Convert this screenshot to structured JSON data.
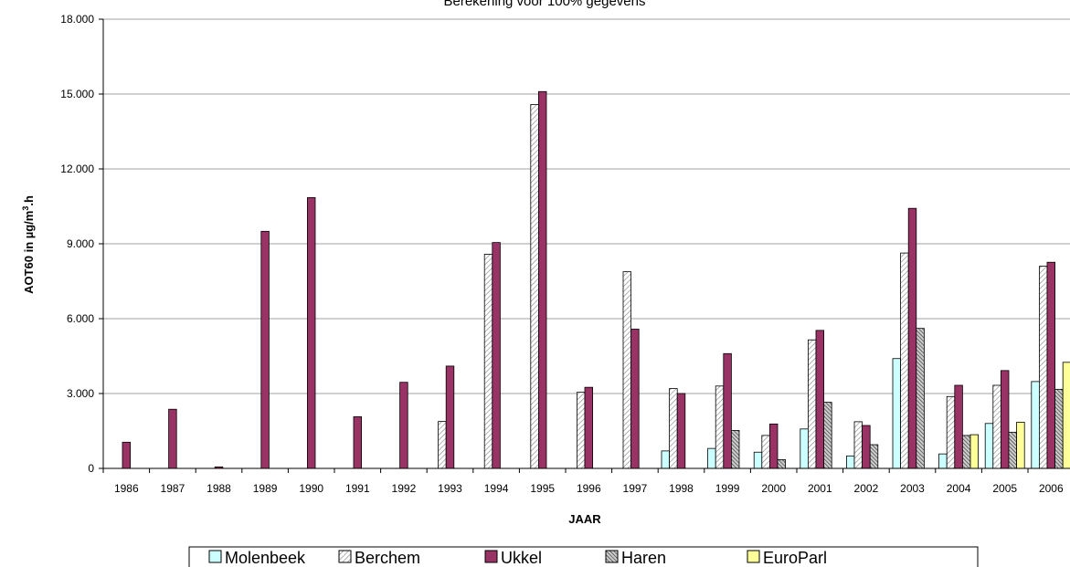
{
  "chart_data": {
    "type": "bar",
    "title": "Berekening voor 100% gegevens",
    "xlabel": "JAAR",
    "ylabel_main": "AOT60 in µg/m",
    "ylabel_sup": "3",
    "ylabel_end": ".h",
    "ylim": [
      0,
      18000
    ],
    "yticks": [
      {
        "value": 0,
        "label": "0"
      },
      {
        "value": 3000,
        "label": "3.000"
      },
      {
        "value": 6000,
        "label": "6.000"
      },
      {
        "value": 9000,
        "label": "9.000"
      },
      {
        "value": 12000,
        "label": "12.000"
      },
      {
        "value": 15000,
        "label": "15.000"
      },
      {
        "value": 18000,
        "label": "18.000"
      }
    ],
    "grid": true,
    "legend_position": "bottom",
    "categories": [
      "1986",
      "1987",
      "1988",
      "1989",
      "1990",
      "1991",
      "1992",
      "1993",
      "1994",
      "1995",
      "1996",
      "1997",
      "1998",
      "1999",
      "2000",
      "2001",
      "2002",
      "2003",
      "2004",
      "2005",
      "2006"
    ],
    "series": [
      {
        "name": "Molenbeek",
        "color": "#ccffff",
        "pattern": "none",
        "values": [
          null,
          null,
          null,
          null,
          null,
          null,
          null,
          null,
          null,
          null,
          null,
          null,
          700,
          800,
          650,
          1580,
          500,
          4400,
          580,
          1800,
          3480
        ]
      },
      {
        "name": "Berchem",
        "color": "#ffffff",
        "pattern": "diag-light",
        "values": [
          null,
          null,
          null,
          null,
          null,
          null,
          null,
          1880,
          8580,
          14580,
          3050,
          7880,
          3200,
          3300,
          1320,
          5150,
          1870,
          8630,
          2880,
          3330,
          8100
        ]
      },
      {
        "name": "Ukkel",
        "color": "#993366",
        "pattern": "none",
        "values": [
          1050,
          2370,
          60,
          9500,
          10850,
          2070,
          3450,
          4100,
          9050,
          15100,
          3250,
          5580,
          3000,
          4600,
          1780,
          5530,
          1720,
          10420,
          3330,
          3920,
          8260
        ]
      },
      {
        "name": "Haren",
        "color": "#999999",
        "pattern": "diag-dark",
        "values": [
          null,
          null,
          null,
          null,
          null,
          null,
          null,
          null,
          null,
          null,
          null,
          null,
          null,
          1520,
          350,
          2650,
          950,
          5610,
          1320,
          1450,
          3170
        ]
      },
      {
        "name": "EuroParl",
        "color": "#ffff99",
        "pattern": "none",
        "values": [
          null,
          null,
          null,
          null,
          null,
          null,
          null,
          null,
          null,
          null,
          null,
          null,
          null,
          null,
          null,
          null,
          null,
          null,
          1350,
          1850,
          4250
        ]
      }
    ]
  }
}
